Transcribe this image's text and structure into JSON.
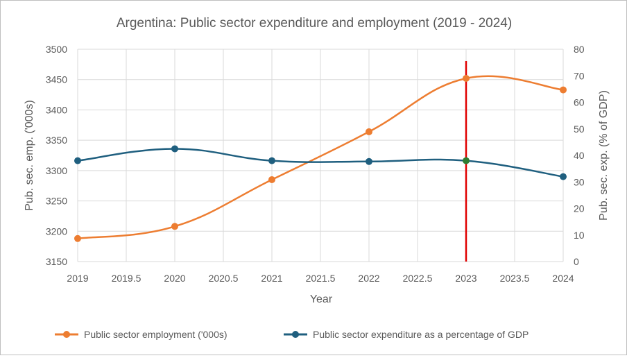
{
  "chart_data": {
    "type": "line",
    "title": "Argentina: Public sector expenditure and employment (2019 - 2024)",
    "xlabel": "Year",
    "ylabel_left": "Pub. sec. emp. ('000s)",
    "ylabel_right": "Pub. sec. exp. (% of GDP)",
    "x_ticks": [
      "2019",
      "2019.5",
      "2020",
      "2020.5",
      "2021",
      "2021.5",
      "2022",
      "2022.5",
      "2023",
      "2023.5",
      "2024"
    ],
    "y_left_ticks": [
      "3150",
      "3200",
      "3250",
      "3300",
      "3350",
      "3400",
      "3450",
      "3500"
    ],
    "y_right_ticks": [
      "0",
      "10",
      "20",
      "30",
      "40",
      "50",
      "60",
      "70",
      "80"
    ],
    "xlim": [
      2019,
      2024
    ],
    "ylim_left": [
      3150,
      3500
    ],
    "ylim_right": [
      0,
      80
    ],
    "grid": true,
    "legend_position": "bottom",
    "series": [
      {
        "name": "Public sector employment ('000s)",
        "axis": "left",
        "color": "#ED7D31",
        "x": [
          2019,
          2020,
          2021,
          2022,
          2023,
          2024
        ],
        "values": [
          3188,
          3208,
          3285,
          3364,
          3452,
          3433
        ]
      },
      {
        "name": "Public sector expenditure as a percentage of GDP",
        "axis": "right",
        "color": "#1F5F7F",
        "x": [
          2019,
          2020,
          2021,
          2022,
          2023,
          2024
        ],
        "values": [
          38,
          42.5,
          38,
          37.7,
          38,
          32
        ]
      }
    ],
    "highlight": {
      "x": 2023,
      "line_color": "#E00000",
      "point_color": "#2E7D32"
    }
  }
}
